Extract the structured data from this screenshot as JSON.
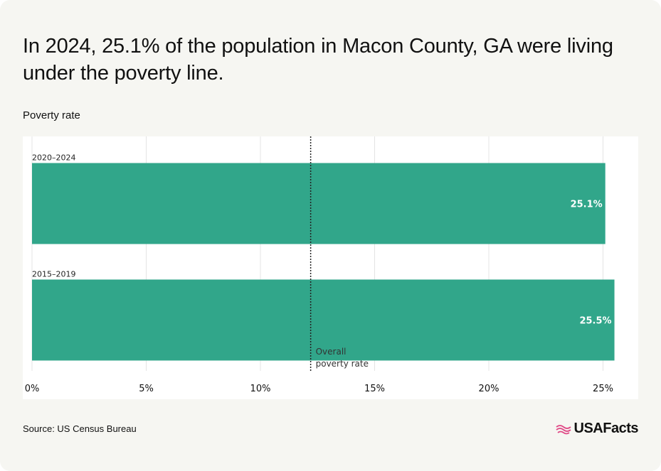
{
  "header": {
    "title": "In 2024, 25.1% of the population in Macon County, GA were living under the poverty line."
  },
  "footer": {
    "source": "Source: US Census Bureau",
    "logo_text": "USAFacts",
    "logo_icon": "us-flag-icon"
  },
  "colors": {
    "bar": "#31a68a",
    "gridline": "#e4e4e4",
    "reference_line": "#222222",
    "logo_accent": "#e04a87"
  },
  "chart_data": {
    "type": "bar",
    "orientation": "horizontal",
    "title": "Poverty rate",
    "categories": [
      "2020–2024",
      "2015–2019"
    ],
    "values": [
      25.1,
      25.5
    ],
    "value_labels": [
      "25.1%",
      "25.5%"
    ],
    "xlim": [
      0,
      26
    ],
    "x_ticks": [
      0,
      5,
      10,
      15,
      20,
      25
    ],
    "x_tick_labels": [
      "0%",
      "5%",
      "10%",
      "15%",
      "20%",
      "25%"
    ],
    "grid": true,
    "reference_line": {
      "label_lines": [
        "Overall",
        "poverty rate"
      ],
      "value": 12.2,
      "style": "dotted"
    }
  }
}
